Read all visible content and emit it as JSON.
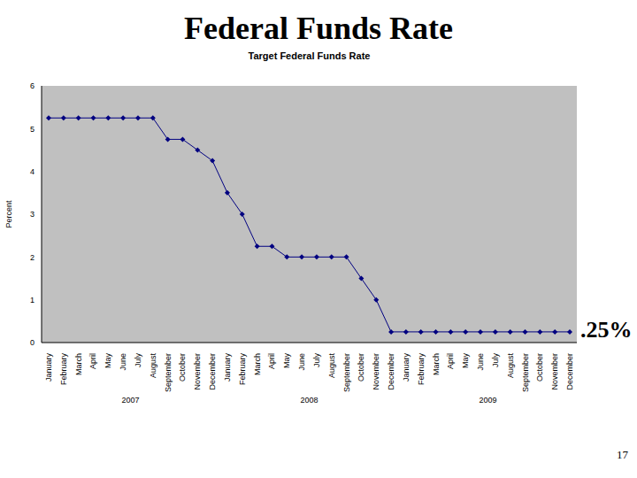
{
  "slide_title": "Federal Funds Rate",
  "page_number": "17",
  "chart_data": {
    "type": "line",
    "title": "Target Federal Funds Rate",
    "y_label": "Percent",
    "categories": [
      "January",
      "February",
      "March",
      "April",
      "May",
      "June",
      "July",
      "August",
      "September",
      "October",
      "November",
      "December",
      "January",
      "February",
      "March",
      "April",
      "May",
      "June",
      "July",
      "August",
      "September",
      "October",
      "November",
      "December",
      "January",
      "February",
      "March",
      "April",
      "May",
      "June",
      "July",
      "August",
      "September",
      "October",
      "November",
      "December"
    ],
    "groups": [
      "2007",
      "2008",
      "2009"
    ],
    "values": [
      5.25,
      5.25,
      5.25,
      5.25,
      5.25,
      5.25,
      5.25,
      5.25,
      4.75,
      4.75,
      4.5,
      4.25,
      3.5,
      3.0,
      2.25,
      2.25,
      2.0,
      2.0,
      2.0,
      2.0,
      2.0,
      1.5,
      1.0,
      0.25,
      0.25,
      0.25,
      0.25,
      0.25,
      0.25,
      0.25,
      0.25,
      0.25,
      0.25,
      0.25,
      0.25,
      0.25
    ],
    "color": "#000080",
    "marker": "diamond",
    "ylim": [
      0,
      6
    ],
    "yticks": [
      0,
      1,
      2,
      3,
      4,
      5,
      6
    ],
    "grid": false,
    "annotations": [
      ".25%"
    ]
  }
}
